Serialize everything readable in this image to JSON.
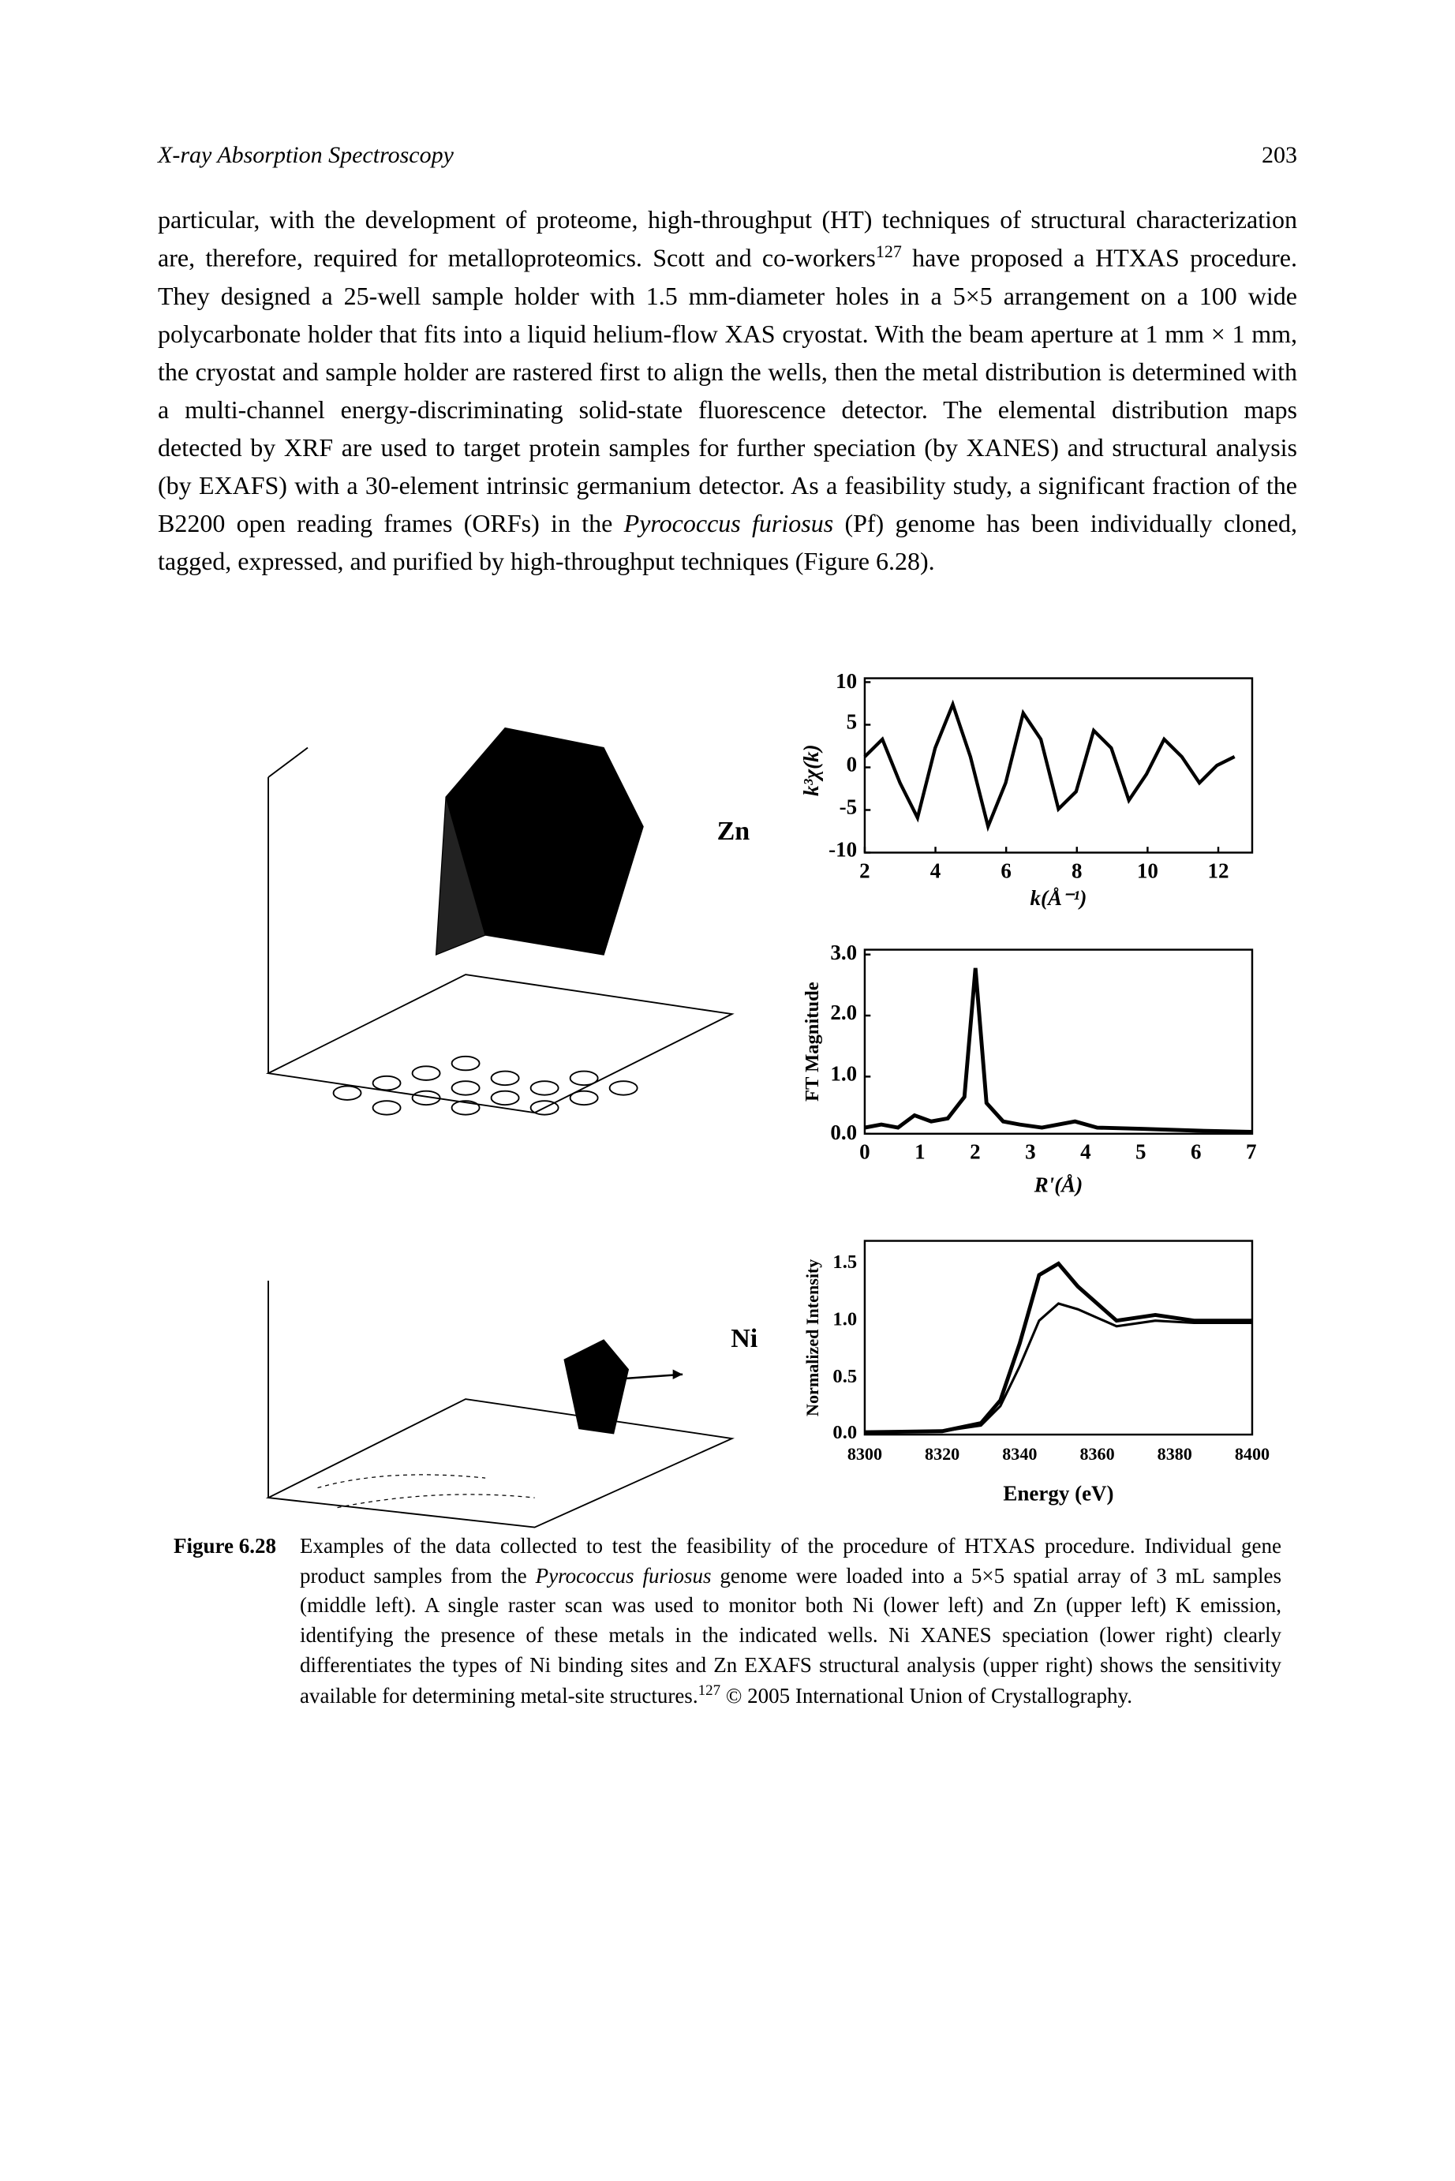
{
  "header": {
    "title": "X-ray Absorption Spectroscopy",
    "page_number": "203"
  },
  "body_text": {
    "part1": "particular, with the development of proteome, high-throughput (HT) techniques of structural characterization are, therefore, required for metalloproteomics. Scott and co-workers",
    "ref1": "127",
    "part2": " have proposed a HTXAS procedure. They designed a 25-well sample holder with 1.5 mm-diameter holes in a 5×5 arrangement on a 100 wide polycarbonate holder that fits into a liquid helium-flow XAS cryostat. With the beam aperture at 1 mm × 1 mm, the cryostat and sample holder are rastered first to align the wells, then the metal distribution is determined with a multi-channel energy-discriminating solid-state fluorescence detector. The elemental distribution maps detected by XRF are used to target protein samples for further speciation (by XANES) and structural analysis (by EXAFS) with a 30-element intrinsic germanium detector. As a feasibility study, a significant fraction of the B2200 open reading frames (ORFs) in the ",
    "italic1": "Pyrococcus furiosus",
    "part3": " (Pf) genome has been individually cloned, tagged, expressed, and purified by high-throughput techniques (Figure 6.28)."
  },
  "figure": {
    "panel_zn_label": "Zn",
    "panel_ni_label": "Ni",
    "exafs_chart": {
      "ylabel": "k³χ(k)",
      "xlabel": "k(Å⁻¹)",
      "xlim": [
        2,
        13
      ],
      "xticks": [
        2,
        4,
        6,
        8,
        10,
        12
      ],
      "ylim": [
        -10,
        10
      ],
      "yticks": [
        -10,
        -5,
        0,
        5,
        10
      ],
      "line_color": "#000000",
      "background_color": "#ffffff",
      "curve": [
        [
          2,
          1
        ],
        [
          2.5,
          3
        ],
        [
          3,
          -2
        ],
        [
          3.5,
          -6
        ],
        [
          4,
          2
        ],
        [
          4.5,
          7
        ],
        [
          5,
          1
        ],
        [
          5.5,
          -7
        ],
        [
          6,
          -2
        ],
        [
          6.5,
          6
        ],
        [
          7,
          3
        ],
        [
          7.5,
          -5
        ],
        [
          8,
          -3
        ],
        [
          8.5,
          4
        ],
        [
          9,
          2
        ],
        [
          9.5,
          -4
        ],
        [
          10,
          -1
        ],
        [
          10.5,
          3
        ],
        [
          11,
          1
        ],
        [
          11.5,
          -2
        ],
        [
          12,
          0
        ],
        [
          12.5,
          1
        ]
      ]
    },
    "ft_chart": {
      "ylabel": "FT Magnitude",
      "xlabel": "R'(Å)",
      "xlim": [
        0,
        7
      ],
      "xticks": [
        0,
        1,
        2,
        3,
        4,
        5,
        6,
        7
      ],
      "ylim": [
        0,
        3.0
      ],
      "yticks": [
        0.0,
        1.0,
        2.0,
        3.0
      ],
      "line_color": "#000000",
      "background_color": "#ffffff",
      "curve": [
        [
          0,
          0.1
        ],
        [
          0.3,
          0.15
        ],
        [
          0.6,
          0.1
        ],
        [
          0.9,
          0.3
        ],
        [
          1.2,
          0.2
        ],
        [
          1.5,
          0.25
        ],
        [
          1.8,
          0.6
        ],
        [
          2.0,
          2.7
        ],
        [
          2.2,
          0.5
        ],
        [
          2.5,
          0.2
        ],
        [
          2.8,
          0.15
        ],
        [
          3.2,
          0.1
        ],
        [
          3.8,
          0.2
        ],
        [
          4.2,
          0.1
        ],
        [
          5,
          0.08
        ],
        [
          6,
          0.05
        ],
        [
          7,
          0.03
        ]
      ]
    },
    "xanes_chart": {
      "ylabel": "Normalized Intensity",
      "xlabel": "Energy (eV)",
      "xlim": [
        8300,
        8400
      ],
      "xticks": [
        8300,
        8320,
        8340,
        8360,
        8380,
        8400
      ],
      "ylim": [
        0,
        1.7
      ],
      "yticks": [
        0.0,
        0.5,
        1.0,
        1.5
      ],
      "line_color": "#000000",
      "background_color": "#ffffff",
      "curve1": [
        [
          8300,
          0.02
        ],
        [
          8320,
          0.03
        ],
        [
          8330,
          0.1
        ],
        [
          8335,
          0.3
        ],
        [
          8340,
          0.8
        ],
        [
          8345,
          1.4
        ],
        [
          8350,
          1.5
        ],
        [
          8355,
          1.3
        ],
        [
          8365,
          1.0
        ],
        [
          8375,
          1.05
        ],
        [
          8385,
          1.0
        ],
        [
          8400,
          1.0
        ]
      ],
      "curve2": [
        [
          8300,
          0.02
        ],
        [
          8320,
          0.03
        ],
        [
          8330,
          0.08
        ],
        [
          8335,
          0.25
        ],
        [
          8340,
          0.6
        ],
        [
          8345,
          1.0
        ],
        [
          8350,
          1.15
        ],
        [
          8355,
          1.1
        ],
        [
          8365,
          0.95
        ],
        [
          8375,
          1.0
        ],
        [
          8385,
          0.98
        ],
        [
          8400,
          0.98
        ]
      ]
    }
  },
  "caption": {
    "label": "Figure 6.28",
    "part1": "Examples of the data collected to test the feasibility of the procedure of HTXAS procedure. Individual gene product samples from the ",
    "italic1": "Pyrococcus furiosus",
    "part2": " genome were loaded into a 5×5 spatial array of 3 mL samples (middle left). A single raster scan was used to monitor both Ni (lower left) and Zn (upper left) K emission, identifying the presence of these metals in the indicated wells. Ni XANES speciation (lower right) clearly differentiates the types of Ni binding sites and Zn EXAFS structural analysis (upper right) shows the sensitivity available for determining metal-site structures.",
    "ref1": "127",
    "part3": " © 2005 International Union of Crystallography."
  }
}
